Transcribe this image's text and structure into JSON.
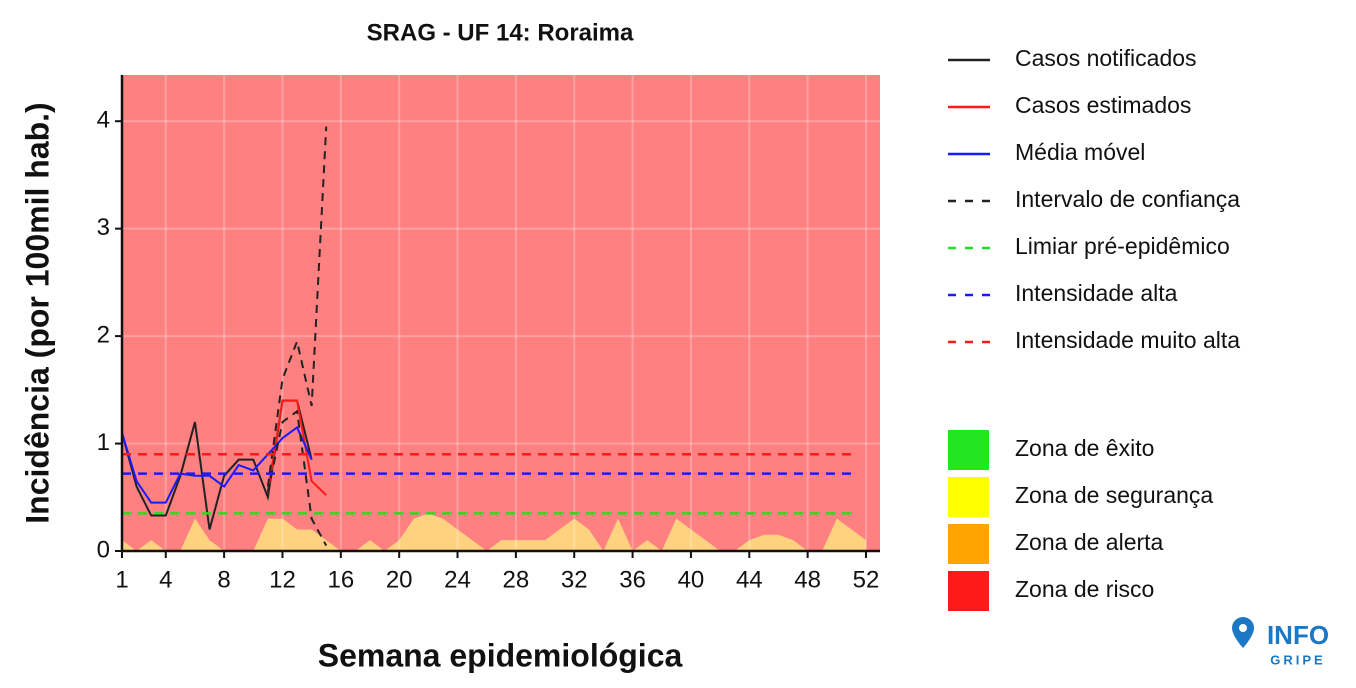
{
  "chart_data": {
    "type": "line",
    "title": "SRAG - UF 14: Roraima",
    "xlabel": "Semana epidemiológica",
    "ylabel": "Incidência (por 100mil hab.)",
    "logo": [
      "INFO",
      "GRIPE"
    ],
    "x": [
      1,
      2,
      3,
      4,
      5,
      6,
      7,
      8,
      9,
      10,
      11,
      12,
      13,
      14,
      15,
      16,
      17,
      18,
      19,
      20,
      21,
      22,
      23,
      24,
      25,
      26,
      27,
      28,
      29,
      30,
      31,
      32,
      33,
      34,
      35,
      36,
      37,
      38,
      39,
      40,
      41,
      42,
      43,
      44,
      45,
      46,
      47,
      48,
      49,
      50,
      51,
      52
    ],
    "xlim": [
      1,
      52.96
    ],
    "xticks": [
      1,
      4,
      8,
      12,
      16,
      20,
      24,
      28,
      32,
      36,
      40,
      44,
      48,
      52
    ],
    "ylim": [
      0,
      4.43
    ],
    "yticks": [
      0,
      1,
      2,
      3,
      4
    ],
    "grid": true,
    "background": "#ff8080",
    "series": [
      {
        "name": "Casos notificados",
        "color": "#222222",
        "dash": false,
        "values": [
          1.1,
          0.6,
          0.33,
          0.33,
          0.7,
          1.2,
          0.2,
          0.7,
          0.85,
          0.85,
          0.5,
          1.4,
          1.4,
          0.85,
          null,
          null,
          null,
          null,
          null,
          null,
          null,
          null,
          null,
          null,
          null,
          null,
          null,
          null,
          null,
          null,
          null,
          null,
          null,
          null,
          null,
          null,
          null,
          null,
          null,
          null,
          null,
          null,
          null,
          null,
          null,
          null,
          null,
          null,
          null,
          null,
          null,
          null
        ]
      },
      {
        "name": "Casos estimados",
        "color": "#ff1a1a",
        "dash": false,
        "values": [
          null,
          null,
          null,
          null,
          null,
          null,
          null,
          null,
          null,
          null,
          0.55,
          1.4,
          1.4,
          0.65,
          0.52,
          null,
          null,
          null,
          null,
          null,
          null,
          null,
          null,
          null,
          null,
          null,
          null,
          null,
          null,
          null,
          null,
          null,
          null,
          null,
          null,
          null,
          null,
          null,
          null,
          null,
          null,
          null,
          null,
          null,
          null,
          null,
          null,
          null,
          null,
          null,
          null,
          null
        ]
      },
      {
        "name": "Média móvel",
        "color": "#1a1aff",
        "dash": false,
        "values": [
          1.1,
          0.65,
          0.45,
          0.45,
          0.72,
          0.7,
          0.7,
          0.6,
          0.8,
          0.75,
          0.9,
          1.05,
          1.15,
          0.85,
          null,
          null,
          null,
          null,
          null,
          null,
          null,
          null,
          null,
          null,
          null,
          null,
          null,
          null,
          null,
          null,
          null,
          null,
          null,
          null,
          null,
          null,
          null,
          null,
          null,
          null,
          null,
          null,
          null,
          null,
          null,
          null,
          null,
          null,
          null,
          null,
          null,
          null
        ]
      },
      {
        "name": "Intervalo de confiança",
        "color": "#222222",
        "dash": true,
        "values": [
          null,
          null,
          null,
          null,
          null,
          null,
          null,
          null,
          null,
          null,
          0.6,
          1.6,
          1.95,
          1.35,
          3.95,
          null,
          null,
          null,
          null,
          null,
          null,
          null,
          null,
          null,
          null,
          null,
          null,
          null,
          null,
          null,
          null,
          null,
          null,
          null,
          null,
          null,
          null,
          null,
          null,
          null,
          null,
          null,
          null,
          null,
          null,
          null,
          null,
          null,
          null,
          null,
          null,
          null
        ],
        "lower": [
          null,
          null,
          null,
          null,
          null,
          null,
          null,
          null,
          null,
          null,
          0.55,
          1.2,
          1.3,
          0.3,
          0.05,
          null,
          null,
          null,
          null,
          null,
          null,
          null,
          null,
          null,
          null,
          null,
          null,
          null,
          null,
          null,
          null,
          null,
          null,
          null,
          null,
          null,
          null,
          null,
          null,
          null,
          null,
          null,
          null,
          null,
          null,
          null,
          null,
          null,
          null,
          null,
          null,
          null
        ]
      },
      {
        "name": "Limiar pré-epidêmico",
        "color": "#22dd22",
        "dash": true,
        "value": 0.35
      },
      {
        "name": "Intensidade alta",
        "color": "#1a1aff",
        "dash": true,
        "value": 0.72
      },
      {
        "name": "Intensidade muito alta",
        "color": "#ff1a1a",
        "dash": true,
        "value": 0.9
      }
    ],
    "zones": [
      {
        "name": "Zona de êxito",
        "color": "#22e622"
      },
      {
        "name": "Zona de segurança",
        "color": "#ffff00",
        "values": [
          0.05,
          0,
          0.05,
          0,
          0,
          0.15,
          0.05,
          0,
          0,
          0,
          0.15,
          0.15,
          0.1,
          0.1,
          0.05,
          0,
          0,
          0.05,
          0,
          0.05,
          0.15,
          0.2,
          0.15,
          0.1,
          0.05,
          0,
          0.05,
          0.05,
          0.05,
          0.05,
          0.1,
          0.15,
          0.1,
          0,
          0.15,
          0,
          0.05,
          0,
          0.15,
          0.1,
          0.05,
          0,
          0,
          0.05,
          0.1,
          0.1,
          0.05,
          0,
          0,
          0.15,
          0.1,
          0.05
        ]
      },
      {
        "name": "Zona de alerta",
        "color": "#ffa500",
        "values": [
          0.1,
          0,
          0.1,
          0,
          0,
          0.3,
          0.1,
          0,
          0,
          0,
          0.3,
          0.3,
          0.2,
          0.2,
          0.1,
          0,
          0,
          0.1,
          0,
          0.1,
          0.3,
          0.35,
          0.3,
          0.2,
          0.1,
          0,
          0.1,
          0.1,
          0.1,
          0.1,
          0.2,
          0.3,
          0.2,
          0,
          0.3,
          0,
          0.1,
          0,
          0.3,
          0.2,
          0.1,
          0,
          0,
          0.1,
          0.15,
          0.15,
          0.1,
          0,
          0,
          0.3,
          0.2,
          0.1
        ]
      },
      {
        "name": "Zona de risco",
        "color": "#ff1a1a"
      }
    ]
  }
}
